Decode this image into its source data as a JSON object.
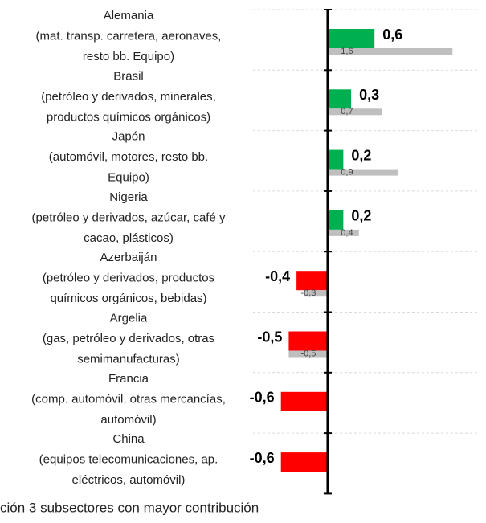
{
  "chart_data": {
    "type": "hbar",
    "categories": [
      [
        "Alemania",
        "(mat. transp. carretera, aeronaves,",
        "resto bb. Equipo)"
      ],
      [
        "Brasil",
        "(petróleo y derivados, minerales,",
        "productos químicos orgánicos)"
      ],
      [
        "Japón",
        "(automóvil, motores, resto bb.",
        "Equipo)"
      ],
      [
        "Nigeria",
        "(petróleo y derivados, azúcar, café y",
        "cacao, plásticos)"
      ],
      [
        "Azerbaiján",
        "(petróleo y derivados, productos",
        "químicos orgánicos, bebidas)"
      ],
      [
        "Argelia",
        "(gas, petróleo y derivados, otras",
        "semimanufacturas)"
      ],
      [
        "Francia",
        "(comp. automóvil, otras mercancías,",
        "automóvil)"
      ],
      [
        "China",
        "(equipos telecomunicaciones, ap.",
        "eléctricos, automóvil)"
      ]
    ],
    "series": [
      {
        "values": [
          0.6,
          0.3,
          0.2,
          0.2,
          -0.4,
          -0.5,
          -0.6,
          -0.6
        ],
        "value_labels": [
          "0,6",
          "0,3",
          "0,2",
          "0,2",
          "-0,4",
          "-0,5",
          "-0,6",
          "-0,6"
        ],
        "colors": [
          "#00b050",
          "#00b050",
          "#00b050",
          "#00b050",
          "#ff0000",
          "#ff0000",
          "#ff0000",
          "#ff0000"
        ]
      },
      {
        "values": [
          1.6,
          0.7,
          0.9,
          0.4,
          -0.3,
          -0.5,
          null,
          null
        ],
        "value_labels": [
          "1,6",
          "0,7",
          "0,9",
          "0,4",
          "-0,3",
          "-0,5",
          null,
          null
        ],
        "color": "#bfbfbf"
      }
    ],
    "xlim": [
      -0.7,
      1.7
    ]
  },
  "caption": "ción 3 subsectores con mayor contribución"
}
